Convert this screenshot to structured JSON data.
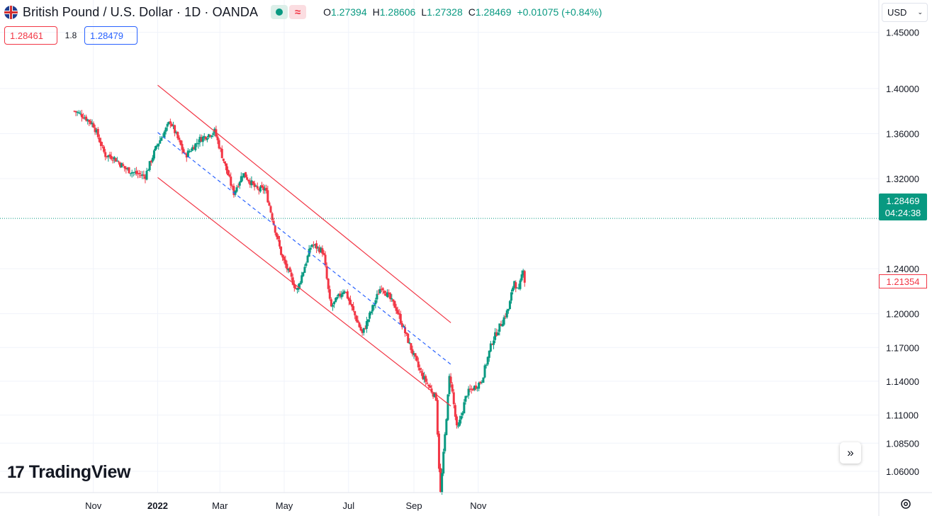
{
  "header": {
    "symbol_title": "British Pound / U.S. Dollar · 1D · OANDA",
    "ohlc": [
      {
        "label": "O",
        "value": "1.27394"
      },
      {
        "label": "H",
        "value": "1.28606"
      },
      {
        "label": "L",
        "value": "1.27328"
      },
      {
        "label": "C",
        "value": "1.28469"
      },
      {
        "label": "",
        "value": "+0.01075 (+0.84%)"
      }
    ]
  },
  "trade": {
    "sell_price": "1.28461",
    "spread": "1.8",
    "buy_price": "1.28479"
  },
  "currency_selector": {
    "value": "USD"
  },
  "price_axis": {
    "labels": [
      "1.45000",
      "1.40000",
      "1.36000",
      "1.32000",
      "1.24000",
      "1.20000",
      "1.17000",
      "1.14000",
      "1.11000",
      "1.08500",
      "1.06000"
    ]
  },
  "time_axis": {
    "labels": [
      "Nov",
      "2022",
      "Mar",
      "May",
      "Jul",
      "Sep",
      "Nov"
    ]
  },
  "tags": {
    "last_price": "1.28469",
    "countdown": "04:24:38",
    "crosshair_price": "1.21354"
  },
  "logo": {
    "mark": "17",
    "text": "TradingView"
  },
  "colors": {
    "up": "#089981",
    "down": "#f23645",
    "channel": "#f23645",
    "midline": "#2962ff",
    "grid": "#f0f3fa"
  },
  "chart_data": {
    "type": "candlestick",
    "series_name": "GBPUSD",
    "price_range": [
      1.04,
      1.465
    ],
    "anchors": [
      [
        "2021-10-14",
        1.38
      ],
      [
        "2021-10-22",
        1.376
      ],
      [
        "2021-11-01",
        1.368
      ],
      [
        "2021-11-12",
        1.341
      ],
      [
        "2021-11-20",
        1.339
      ],
      [
        "2021-12-01",
        1.329
      ],
      [
        "2021-12-10",
        1.325
      ],
      [
        "2021-12-20",
        1.322
      ],
      [
        "2021-12-31",
        1.349
      ],
      [
        "2022-01-13",
        1.371
      ],
      [
        "2022-01-27",
        1.34
      ],
      [
        "2022-02-10",
        1.355
      ],
      [
        "2022-02-24",
        1.362
      ],
      [
        "2022-03-14",
        1.307
      ],
      [
        "2022-03-23",
        1.325
      ],
      [
        "2022-04-05",
        1.31
      ],
      [
        "2022-04-13",
        1.311
      ],
      [
        "2022-04-22",
        1.276
      ],
      [
        "2022-04-29",
        1.25
      ],
      [
        "2022-05-13",
        1.22
      ],
      [
        "2022-05-27",
        1.262
      ],
      [
        "2022-06-07",
        1.255
      ],
      [
        "2022-06-14",
        1.205
      ],
      [
        "2022-06-27",
        1.222
      ],
      [
        "2022-07-14",
        1.182
      ],
      [
        "2022-08-01",
        1.225
      ],
      [
        "2022-08-15",
        1.205
      ],
      [
        "2022-08-30",
        1.167
      ],
      [
        "2022-09-07",
        1.148
      ],
      [
        "2022-09-22",
        1.125
      ],
      [
        "2022-09-26",
        1.038
      ],
      [
        "2022-10-05",
        1.148
      ],
      [
        "2022-10-12",
        1.095
      ],
      [
        "2022-10-21",
        1.129
      ],
      [
        "2022-11-04",
        1.14
      ],
      [
        "2022-11-14",
        1.175
      ],
      [
        "2022-11-30",
        1.205
      ],
      [
        "2022-12-05",
        1.23
      ],
      [
        "2022-12-09",
        1.218
      ],
      [
        "2022-12-14",
        1.243
      ],
      [
        "2022-12-16",
        1.215
      ]
    ],
    "channel_lines": [
      {
        "name": "upper",
        "from": [
          "2022-01-01",
          1.403
        ],
        "to": [
          "2022-10-06",
          1.192
        ]
      },
      {
        "name": "middle",
        "from": [
          "2022-01-01",
          1.361
        ],
        "to": [
          "2022-10-06",
          1.155
        ]
      },
      {
        "name": "lower",
        "from": [
          "2022-01-01",
          1.321
        ],
        "to": [
          "2022-10-06",
          1.118
        ]
      }
    ],
    "current_price": 1.28469
  }
}
